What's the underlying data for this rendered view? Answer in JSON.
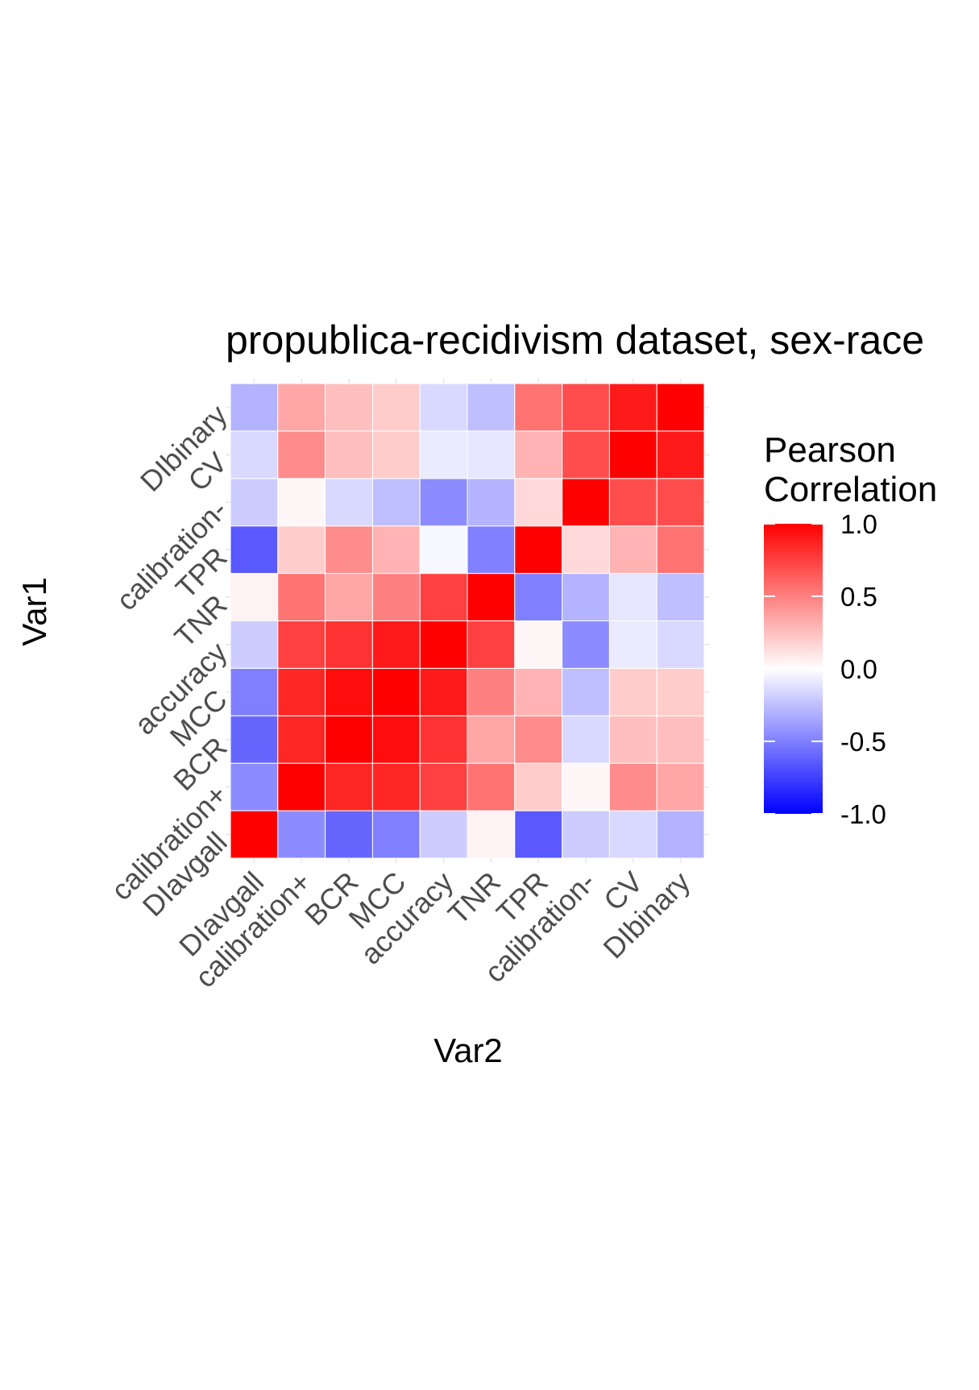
{
  "chart_data": {
    "type": "heatmap",
    "title": "propublica-recidivism dataset, sex-race",
    "xlabel": "Var2",
    "ylabel": "Var1",
    "x_categories": [
      "DIavgall",
      "calibration+",
      "BCR",
      "MCC",
      "accuracy",
      "TNR",
      "TPR",
      "calibration-",
      "CV",
      "DIbinary"
    ],
    "y_categories": [
      "DIavgall",
      "calibration+",
      "BCR",
      "MCC",
      "accuracy",
      "TNR",
      "TPR",
      "calibration-",
      "CV",
      "DIbinary"
    ],
    "values": [
      [
        1.0,
        -0.45,
        -0.6,
        -0.5,
        -0.2,
        0.05,
        -0.65,
        -0.2,
        -0.15,
        -0.3
      ],
      [
        -0.45,
        1.0,
        0.85,
        0.85,
        0.75,
        0.55,
        0.2,
        0.03,
        0.45,
        0.35
      ],
      [
        -0.6,
        0.85,
        1.0,
        0.95,
        0.8,
        0.35,
        0.45,
        -0.15,
        0.25,
        0.25
      ],
      [
        -0.5,
        0.85,
        0.95,
        1.0,
        0.9,
        0.5,
        0.3,
        -0.25,
        0.2,
        0.2
      ],
      [
        -0.2,
        0.75,
        0.8,
        0.9,
        1.0,
        0.75,
        0.03,
        -0.45,
        -0.08,
        -0.15
      ],
      [
        0.05,
        0.55,
        0.35,
        0.5,
        0.75,
        1.0,
        -0.5,
        -0.3,
        -0.1,
        -0.25
      ],
      [
        -0.65,
        0.2,
        0.45,
        0.3,
        -0.03,
        -0.5,
        1.0,
        0.15,
        0.3,
        0.55
      ],
      [
        -0.2,
        0.03,
        -0.15,
        -0.25,
        -0.45,
        -0.3,
        0.15,
        1.0,
        0.7,
        0.7
      ],
      [
        -0.15,
        0.45,
        0.25,
        0.2,
        -0.08,
        -0.1,
        0.3,
        0.7,
        1.0,
        0.9
      ],
      [
        -0.3,
        0.35,
        0.25,
        0.2,
        -0.15,
        -0.25,
        0.55,
        0.7,
        0.9,
        1.0
      ]
    ],
    "legend": {
      "title_lines": [
        "Pearson",
        "Correlation"
      ],
      "ticks": [
        {
          "value": 1.0,
          "label": "1.0"
        },
        {
          "value": 0.5,
          "label": "0.5"
        },
        {
          "value": 0.0,
          "label": "0.0"
        },
        {
          "value": -0.5,
          "label": "-0.5"
        },
        {
          "value": -1.0,
          "label": "-1.0"
        }
      ],
      "placement": "right"
    },
    "color_low": "#0000ff",
    "color_mid": "#ffffff",
    "color_high": "#ff0000",
    "range": [
      -1,
      1
    ],
    "grid": true
  }
}
